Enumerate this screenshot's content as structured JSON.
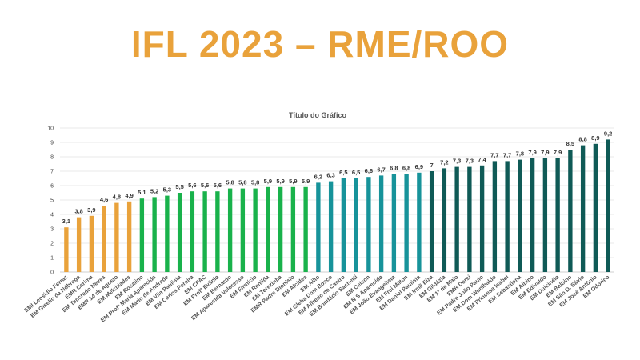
{
  "slide": {
    "title": "IFL 2023 – RME/ROO"
  },
  "chart_data": {
    "type": "bar",
    "title": "Título do Gráfico",
    "ylim": [
      0,
      10
    ],
    "yticks": [
      0,
      1,
      2,
      3,
      4,
      5,
      6,
      7,
      8,
      9,
      10
    ],
    "grid": true,
    "legend": "none",
    "categories": [
      "EMI Leosidio Ferraz",
      "EM Giselio da Nóbrega",
      "EMR Carima",
      "EM Tancredo Neves",
      "EMR 14 de Agosto",
      "EM Melchiades",
      "EM Rosalino",
      "EM Profª Maria Aparecida",
      "EM Mário de Andrade",
      "EM Vila Paulista",
      "EM Carlos Pereira",
      "EM CPAC",
      "EM Profª Evânia",
      "EM Bernardo",
      "EM Aparecida Veloresso",
      "EM Firmício",
      "EM Renilda",
      "EM Terezinha",
      "EMR Padre Dionisio",
      "EM Alcides",
      "EM Ailto",
      "EM Gleba Dom Bosco",
      "EM Alfredo de Castro",
      "EM Bonifácio Sachetti",
      "EM Celson",
      "EM N S Aparecida",
      "EM João Evangelista",
      "EM Frei Milton",
      "EM Daniel Paulista",
      "EM Irmã Elza",
      "EM Gildázia",
      "EM 1º de Maio",
      "EMR Dersi",
      "EM Padre João Paulo",
      "EM Dom Wunibaldo",
      "EM Princesa Isabel",
      "EM Sebastiana",
      "EM Albino",
      "EM Edivaldo",
      "EM Dulcinéia",
      "EM Balbino",
      "EM São D. Sávio",
      "EM José Antônio",
      "EM Odorico"
    ],
    "values": [
      3.1,
      3.8,
      3.9,
      4.6,
      4.8,
      4.9,
      5.1,
      5.2,
      5.3,
      5.5,
      5.6,
      5.6,
      5.6,
      5.8,
      5.8,
      5.8,
      5.9,
      5.9,
      5.9,
      5.9,
      6.2,
      6.3,
      6.5,
      6.5,
      6.6,
      6.7,
      6.8,
      6.8,
      6.9,
      7,
      7.2,
      7.3,
      7.3,
      7.4,
      7.7,
      7.7,
      7.8,
      7.9,
      7.9,
      7.9,
      8.5,
      8.8,
      8.9,
      9.2
    ],
    "value_labels": [
      "3,1",
      "3,8",
      "3,9",
      "4,6",
      "4,8",
      "4,9",
      "5,1",
      "5,2",
      "5,3",
      "5,5",
      "5,6",
      "5,6",
      "5,6",
      "5,8",
      "5,8",
      "5,8",
      "5,9",
      "5,9",
      "5,9",
      "5,9",
      "6,2",
      "6,3",
      "6,5",
      "6,5",
      "6,6",
      "6,7",
      "6,8",
      "6,8",
      "6,9",
      "7",
      "7,2",
      "7,3",
      "7,3",
      "7,4",
      "7,7",
      "7,7",
      "7,8",
      "7,9",
      "7,9",
      "7,9",
      "8,5",
      "8,8",
      "8,9",
      "9,2"
    ],
    "bar_colors": [
      "#e9a23b",
      "#e9a23b",
      "#e9a23b",
      "#e9a23b",
      "#e9a23b",
      "#e9a23b",
      "#19b24b",
      "#19b24b",
      "#19b24b",
      "#19b24b",
      "#19b24b",
      "#19b24b",
      "#19b24b",
      "#19b24b",
      "#19b24b",
      "#19b24b",
      "#19b24b",
      "#19b24b",
      "#19b24b",
      "#19b24b",
      "#17939a",
      "#17939a",
      "#17939a",
      "#17939a",
      "#17939a",
      "#17939a",
      "#17939a",
      "#17939a",
      "#17939a",
      "#0f5a56",
      "#0f5a56",
      "#0f5a56",
      "#0f5a56",
      "#0f5a56",
      "#0f5a56",
      "#0f5a56",
      "#0f5a56",
      "#0f5a56",
      "#0f5a56",
      "#0f5a56",
      "#0f5a56",
      "#0f5a56",
      "#0f5a56",
      "#0f5a56"
    ]
  }
}
